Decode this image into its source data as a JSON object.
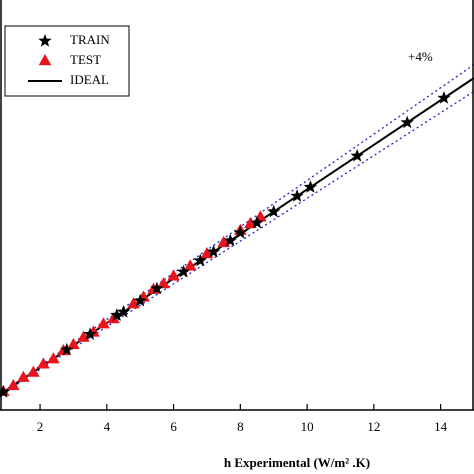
{
  "chart_data": {
    "type": "scatter",
    "xlabel": "h Experimental (W/m² .K)",
    "xlim": [
      0.8,
      15
    ],
    "ylim": [
      0.1,
      18.5
    ],
    "xticks": [
      2,
      4,
      6,
      8,
      10,
      12,
      14
    ],
    "annotation": {
      "value": 4,
      "label": "+4%"
    },
    "series": [
      {
        "name": "TRAIN",
        "color": "#000000",
        "marker": "star",
        "x": [
          0.9,
          2.8,
          3.5,
          4.3,
          4.5,
          5.0,
          5.5,
          6.3,
          6.8,
          7.2,
          7.7,
          8.0,
          8.5,
          9.0,
          9.7,
          10.1,
          11.5,
          13.0,
          14.1
        ],
        "y": [
          0.9,
          2.8,
          3.5,
          4.35,
          4.5,
          5.0,
          5.55,
          6.3,
          6.8,
          7.2,
          7.7,
          8.05,
          8.5,
          9.0,
          9.7,
          10.1,
          11.5,
          13.0,
          14.1
        ]
      },
      {
        "name": "TEST",
        "color": "#e8141e",
        "marker": "triangle",
        "x": [
          0.9,
          1.2,
          1.5,
          1.8,
          2.1,
          2.4,
          2.7,
          3.0,
          3.3,
          3.6,
          3.9,
          4.2,
          4.8,
          5.1,
          5.4,
          5.7,
          6.0,
          6.5,
          7.0,
          7.5,
          8.0,
          8.3,
          8.6
        ],
        "y": [
          0.92,
          1.18,
          1.55,
          1.78,
          2.15,
          2.38,
          2.75,
          3.02,
          3.35,
          3.58,
          3.95,
          4.18,
          4.85,
          5.15,
          5.5,
          5.75,
          6.1,
          6.55,
          7.1,
          7.6,
          8.15,
          8.45,
          8.75
        ]
      },
      {
        "name": "IDEAL",
        "color": "#000000",
        "marker": "line",
        "x": [
          0.8,
          15
        ],
        "y": [
          0.8,
          15
        ]
      }
    ]
  }
}
